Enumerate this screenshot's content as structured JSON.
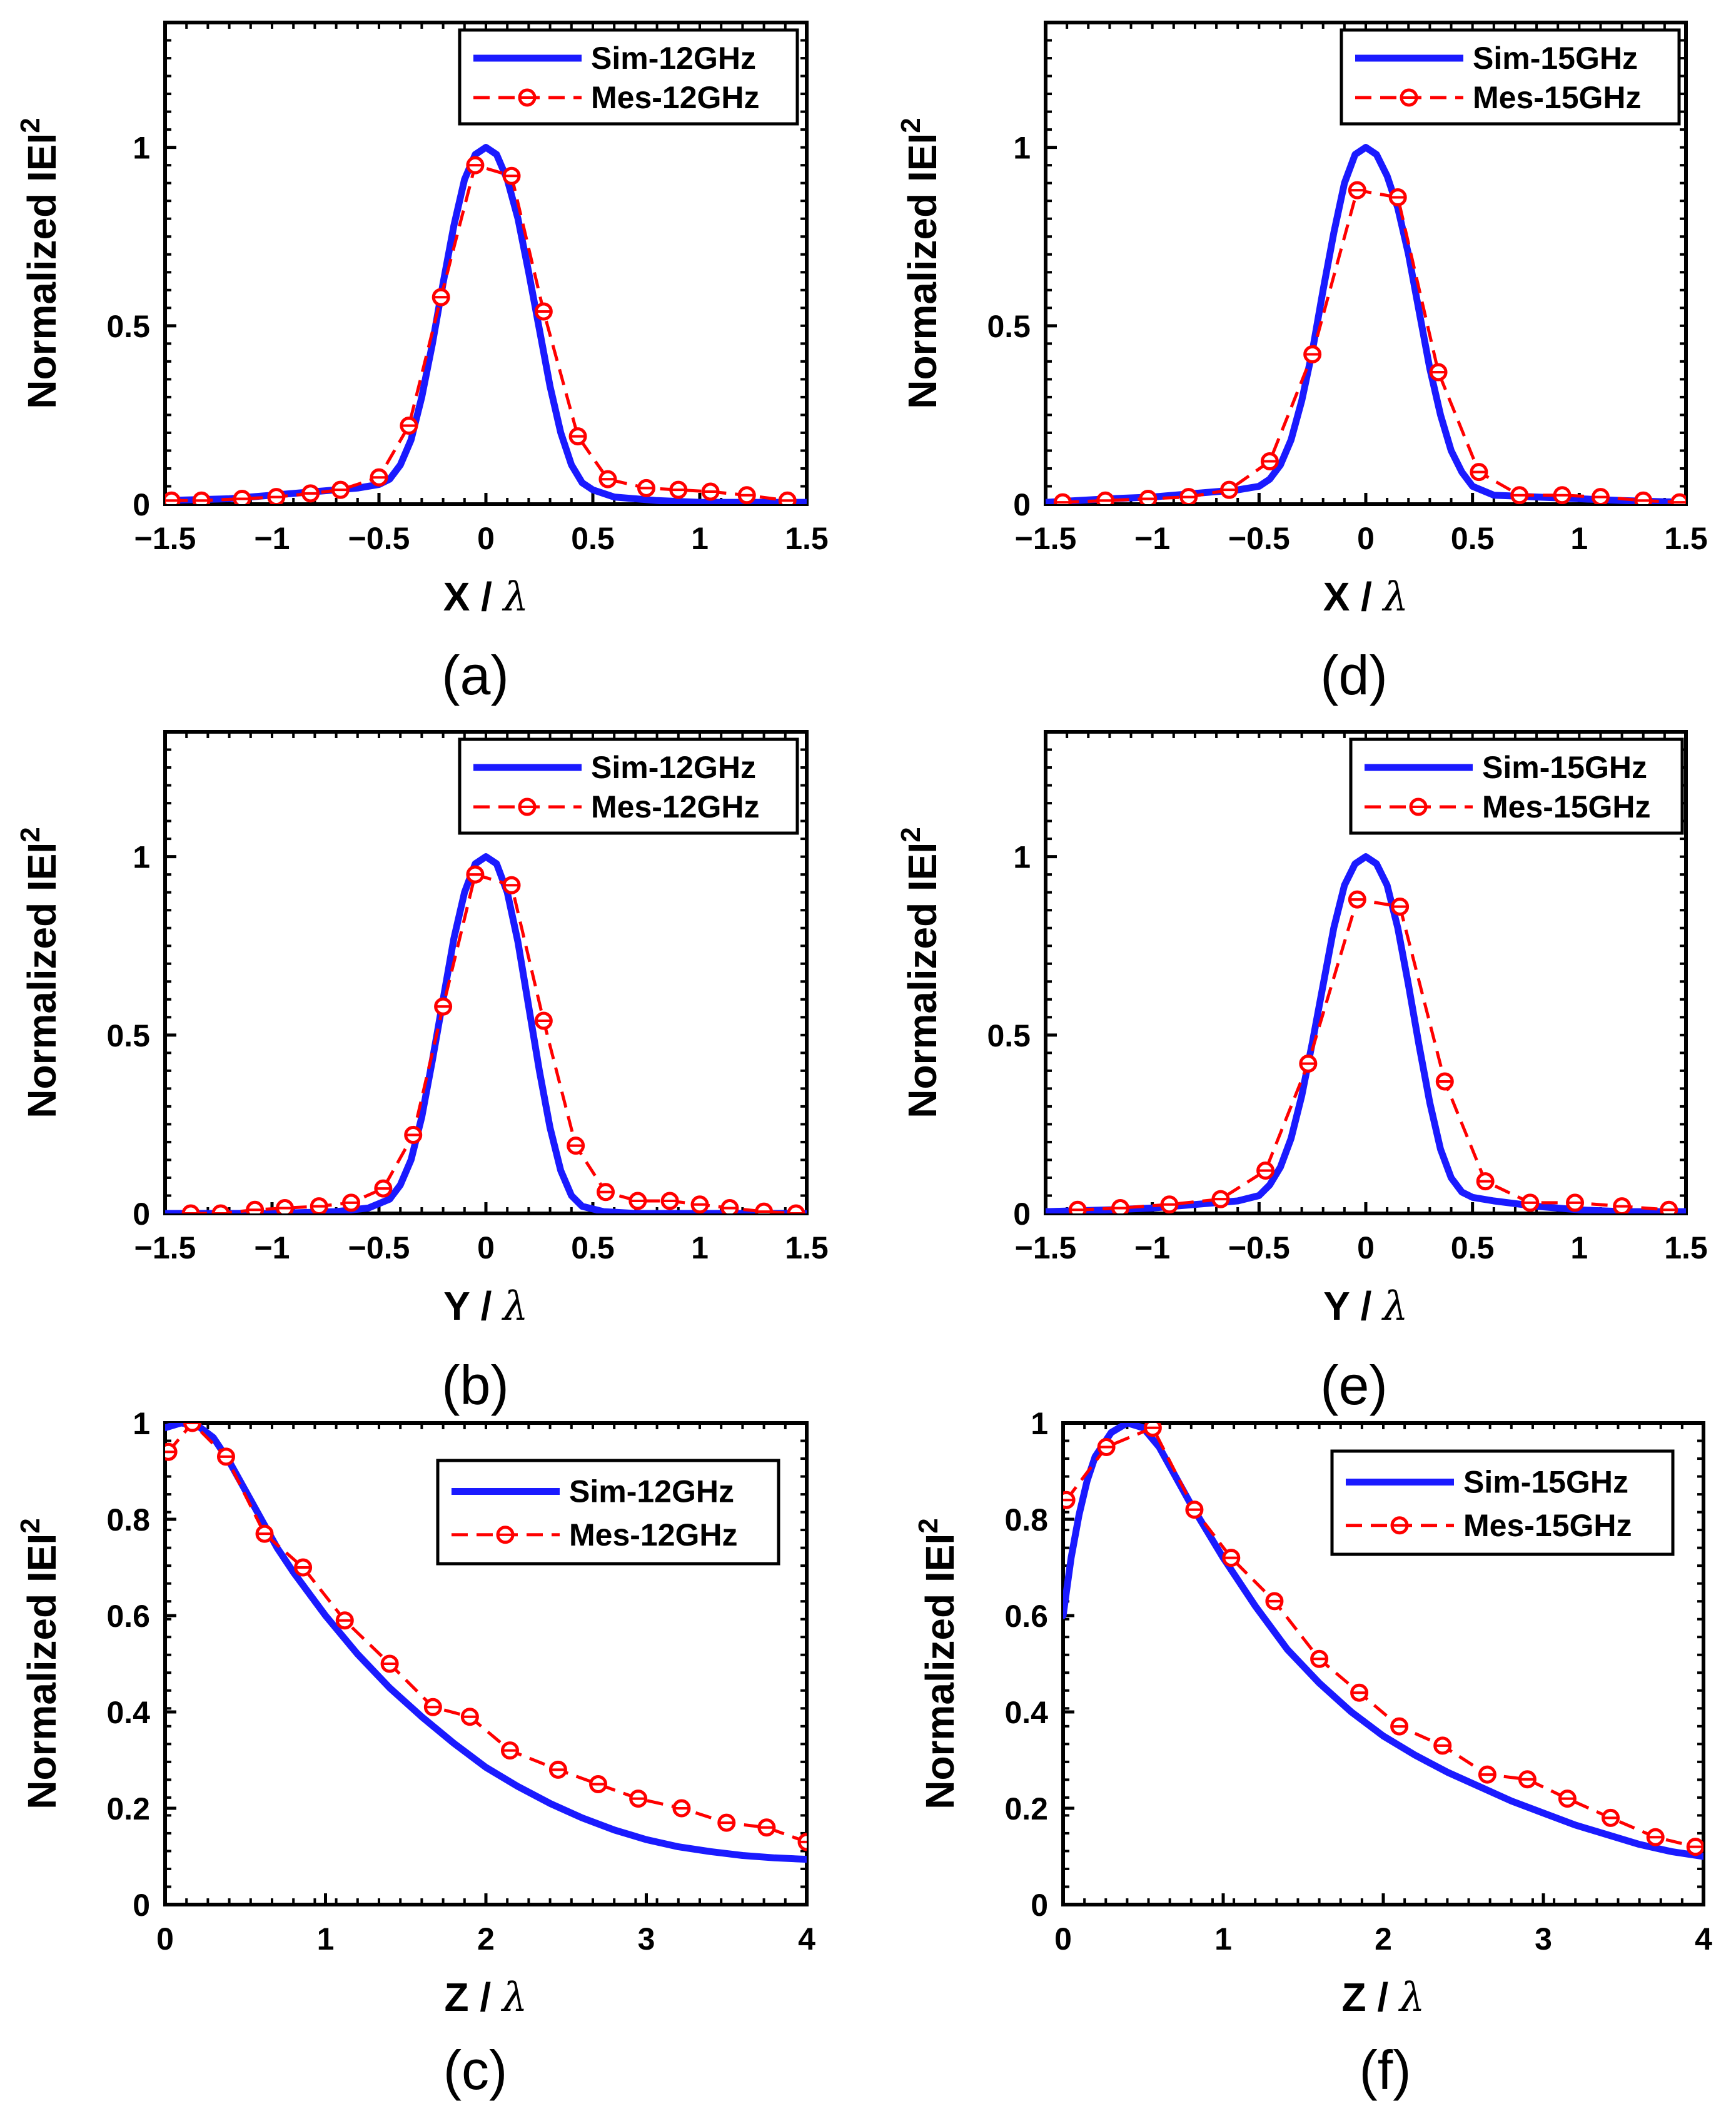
{
  "colors": {
    "sim": "#1a1aff",
    "mes": "#ff0000",
    "axis": "#000000"
  },
  "chart_data": [
    {
      "type": "line",
      "panel_label": "(a)",
      "title": "",
      "xlabel": {
        "var": "X",
        "sep": " / ",
        "unit": "λ"
      },
      "ylabel": "Normalized IEI",
      "ylabel_sup": "2",
      "xlim": [
        -1.5,
        1.5
      ],
      "ylim": [
        0,
        1.35
      ],
      "xticks": [
        -1.5,
        -1,
        -0.5,
        0,
        0.5,
        1,
        1.5
      ],
      "xtick_labels": [
        "−1.5",
        "−1",
        "−0.5",
        "0",
        "0.5",
        "1",
        "1.5"
      ],
      "yticks": [
        0,
        0.5,
        1
      ],
      "ytick_labels": [
        "0",
        "0.5",
        "1"
      ],
      "legend_position": "top-right",
      "series": [
        {
          "name": "Sim-12GHz",
          "style": "solid",
          "x": [
            -1.5,
            -1.2,
            -1.0,
            -0.8,
            -0.6,
            -0.5,
            -0.45,
            -0.4,
            -0.35,
            -0.3,
            -0.25,
            -0.2,
            -0.15,
            -0.1,
            -0.05,
            0,
            0.05,
            0.1,
            0.15,
            0.2,
            0.25,
            0.3,
            0.35,
            0.4,
            0.45,
            0.5,
            0.6,
            0.8,
            1.0,
            1.2,
            1.5
          ],
          "y": [
            0.01,
            0.015,
            0.025,
            0.035,
            0.045,
            0.055,
            0.07,
            0.11,
            0.18,
            0.3,
            0.45,
            0.62,
            0.78,
            0.91,
            0.98,
            1.0,
            0.98,
            0.91,
            0.8,
            0.65,
            0.49,
            0.33,
            0.2,
            0.11,
            0.06,
            0.04,
            0.02,
            0.01,
            0.005,
            0.005,
            0.005
          ]
        },
        {
          "name": "Mes-12GHz",
          "style": "dashed-markers",
          "x": [
            -1.47,
            -1.33,
            -1.14,
            -0.98,
            -0.82,
            -0.68,
            -0.5,
            -0.36,
            -0.21,
            -0.05,
            0.12,
            0.27,
            0.43,
            0.57,
            0.75,
            0.9,
            1.05,
            1.22,
            1.41
          ],
          "y": [
            0.01,
            0.01,
            0.015,
            0.02,
            0.03,
            0.04,
            0.075,
            0.22,
            0.58,
            0.95,
            0.92,
            0.54,
            0.19,
            0.07,
            0.045,
            0.04,
            0.035,
            0.025,
            0.01
          ]
        }
      ]
    },
    {
      "type": "line",
      "panel_label": "(b)",
      "title": "",
      "xlabel": {
        "var": "Y",
        "sep": " / ",
        "unit": "λ"
      },
      "ylabel": "Normalized IEI",
      "ylabel_sup": "2",
      "xlim": [
        -1.5,
        1.5
      ],
      "ylim": [
        0,
        1.35
      ],
      "xticks": [
        -1.5,
        -1,
        -0.5,
        0,
        0.5,
        1,
        1.5
      ],
      "xtick_labels": [
        "−1.5",
        "−1",
        "−0.5",
        "0",
        "0.5",
        "1",
        "1.5"
      ],
      "yticks": [
        0,
        0.5,
        1
      ],
      "ytick_labels": [
        "0",
        "0.5",
        "1"
      ],
      "legend_position": "top-right",
      "series": [
        {
          "name": "Sim-12GHz",
          "style": "solid",
          "x": [
            -1.5,
            -1.0,
            -0.7,
            -0.55,
            -0.45,
            -0.4,
            -0.35,
            -0.3,
            -0.25,
            -0.2,
            -0.15,
            -0.1,
            -0.05,
            0,
            0.05,
            0.1,
            0.15,
            0.2,
            0.25,
            0.3,
            0.35,
            0.4,
            0.45,
            0.55,
            0.7,
            1.0,
            1.5
          ],
          "y": [
            0.0,
            0.0,
            0.005,
            0.015,
            0.04,
            0.08,
            0.15,
            0.27,
            0.43,
            0.6,
            0.77,
            0.9,
            0.98,
            1.0,
            0.98,
            0.9,
            0.76,
            0.58,
            0.4,
            0.24,
            0.12,
            0.05,
            0.02,
            0.005,
            0.0,
            0.0,
            0.0
          ]
        },
        {
          "name": "Mes-12GHz",
          "style": "dashed-markers",
          "x": [
            -1.38,
            -1.24,
            -1.08,
            -0.94,
            -0.78,
            -0.63,
            -0.48,
            -0.34,
            -0.2,
            -0.05,
            0.12,
            0.27,
            0.42,
            0.56,
            0.71,
            0.86,
            1.0,
            1.14,
            1.3,
            1.45
          ],
          "y": [
            0.0,
            0.0,
            0.01,
            0.015,
            0.02,
            0.03,
            0.07,
            0.22,
            0.58,
            0.95,
            0.92,
            0.54,
            0.19,
            0.06,
            0.035,
            0.035,
            0.025,
            0.015,
            0.005,
            0.0
          ]
        }
      ]
    },
    {
      "type": "line",
      "panel_label": "(c)",
      "title": "",
      "xlabel": {
        "var": "Z",
        "sep": " / ",
        "unit": "λ"
      },
      "ylabel": "Normalized IEI",
      "ylabel_sup": "2",
      "xlim": [
        0,
        4
      ],
      "ylim": [
        0,
        1
      ],
      "xticks": [
        0,
        1,
        2,
        3,
        4
      ],
      "xtick_labels": [
        "0",
        "1",
        "2",
        "3",
        "4"
      ],
      "yticks": [
        0,
        0.2,
        0.4,
        0.6,
        0.8,
        1
      ],
      "ytick_labels": [
        "0",
        "0.2",
        "0.4",
        "0.6",
        "0.8",
        "1"
      ],
      "legend_position": "top-right",
      "series": [
        {
          "name": "Sim-12GHz",
          "style": "solid",
          "x": [
            0,
            0.1,
            0.2,
            0.3,
            0.4,
            0.5,
            0.6,
            0.7,
            0.8,
            1.0,
            1.2,
            1.4,
            1.6,
            1.8,
            2.0,
            2.2,
            2.4,
            2.6,
            2.8,
            3.0,
            3.2,
            3.4,
            3.6,
            3.8,
            4.0
          ],
          "y": [
            0.99,
            1.0,
            0.995,
            0.97,
            0.92,
            0.86,
            0.8,
            0.74,
            0.69,
            0.6,
            0.52,
            0.45,
            0.39,
            0.335,
            0.285,
            0.245,
            0.21,
            0.18,
            0.155,
            0.135,
            0.12,
            0.11,
            0.102,
            0.097,
            0.094
          ]
        },
        {
          "name": "Mes-12GHz",
          "style": "dashed-markers",
          "x": [
            0.02,
            0.17,
            0.38,
            0.62,
            0.86,
            1.12,
            1.4,
            1.67,
            1.9,
            2.15,
            2.45,
            2.7,
            2.95,
            3.22,
            3.5,
            3.75,
            4.0
          ],
          "y": [
            0.94,
            1.0,
            0.93,
            0.77,
            0.7,
            0.59,
            0.5,
            0.41,
            0.39,
            0.32,
            0.28,
            0.25,
            0.22,
            0.2,
            0.17,
            0.16,
            0.13
          ]
        }
      ]
    },
    {
      "type": "line",
      "panel_label": "(d)",
      "title": "",
      "xlabel": {
        "var": "X",
        "sep": " / ",
        "unit": "λ"
      },
      "ylabel": "Normalized IEI",
      "ylabel_sup": "2",
      "xlim": [
        -1.5,
        1.5
      ],
      "ylim": [
        0,
        1.35
      ],
      "xticks": [
        -1.5,
        -1,
        -0.5,
        0,
        0.5,
        1,
        1.5
      ],
      "xtick_labels": [
        "−1.5",
        "−1",
        "−0.5",
        "0",
        "0.5",
        "1",
        "1.5"
      ],
      "yticks": [
        0,
        0.5,
        1
      ],
      "ytick_labels": [
        "0",
        "0.5",
        "1"
      ],
      "legend_position": "top-right",
      "series": [
        {
          "name": "Sim-15GHz",
          "style": "solid",
          "x": [
            -1.5,
            -1.2,
            -1.0,
            -0.8,
            -0.6,
            -0.5,
            -0.45,
            -0.4,
            -0.35,
            -0.3,
            -0.25,
            -0.2,
            -0.15,
            -0.1,
            -0.05,
            0,
            0.05,
            0.1,
            0.15,
            0.2,
            0.25,
            0.3,
            0.35,
            0.4,
            0.45,
            0.5,
            0.6,
            0.8,
            1.0,
            1.2,
            1.5
          ],
          "y": [
            0.005,
            0.015,
            0.02,
            0.03,
            0.04,
            0.05,
            0.07,
            0.11,
            0.18,
            0.29,
            0.43,
            0.6,
            0.76,
            0.9,
            0.98,
            1.0,
            0.98,
            0.92,
            0.83,
            0.7,
            0.54,
            0.38,
            0.25,
            0.15,
            0.09,
            0.05,
            0.025,
            0.02,
            0.015,
            0.01,
            0.005
          ]
        },
        {
          "name": "Mes-15GHz",
          "style": "dashed-markers",
          "x": [
            -1.42,
            -1.22,
            -1.02,
            -0.83,
            -0.64,
            -0.45,
            -0.25,
            -0.04,
            0.15,
            0.34,
            0.53,
            0.72,
            0.92,
            1.1,
            1.3,
            1.47
          ],
          "y": [
            0.005,
            0.01,
            0.015,
            0.02,
            0.04,
            0.12,
            0.42,
            0.88,
            0.86,
            0.37,
            0.09,
            0.025,
            0.025,
            0.02,
            0.01,
            0.005
          ]
        }
      ]
    },
    {
      "type": "line",
      "panel_label": "(e)",
      "title": "",
      "xlabel": {
        "var": "Y",
        "sep": " / ",
        "unit": "λ"
      },
      "ylabel": "Normalized IEI",
      "ylabel_sup": "2",
      "xlim": [
        -1.5,
        1.5
      ],
      "ylim": [
        0,
        1.35
      ],
      "xticks": [
        -1.5,
        -1,
        -0.5,
        0,
        0.5,
        1,
        1.5
      ],
      "xtick_labels": [
        "−1.5",
        "−1",
        "−0.5",
        "0",
        "0.5",
        "1",
        "1.5"
      ],
      "yticks": [
        0,
        0.5,
        1
      ],
      "ytick_labels": [
        "0",
        "0.5",
        "1"
      ],
      "legend_position": "top-right",
      "series": [
        {
          "name": "Sim-15GHz",
          "style": "solid",
          "x": [
            -1.5,
            -1.2,
            -1.0,
            -0.8,
            -0.6,
            -0.5,
            -0.45,
            -0.4,
            -0.35,
            -0.3,
            -0.25,
            -0.2,
            -0.15,
            -0.1,
            -0.05,
            0,
            0.05,
            0.1,
            0.15,
            0.2,
            0.25,
            0.3,
            0.35,
            0.4,
            0.45,
            0.5,
            0.6,
            0.8,
            1.0,
            1.2,
            1.5
          ],
          "y": [
            0.005,
            0.01,
            0.015,
            0.025,
            0.035,
            0.05,
            0.08,
            0.13,
            0.21,
            0.33,
            0.48,
            0.64,
            0.8,
            0.92,
            0.98,
            1.0,
            0.98,
            0.92,
            0.8,
            0.64,
            0.47,
            0.31,
            0.18,
            0.1,
            0.06,
            0.045,
            0.035,
            0.02,
            0.01,
            0.005,
            0.005
          ]
        },
        {
          "name": "Mes-15GHz",
          "style": "dashed-markers",
          "x": [
            -1.35,
            -1.15,
            -0.92,
            -0.68,
            -0.47,
            -0.27,
            -0.04,
            0.16,
            0.37,
            0.56,
            0.77,
            0.98,
            1.2,
            1.42
          ],
          "y": [
            0.01,
            0.015,
            0.025,
            0.04,
            0.12,
            0.42,
            0.88,
            0.86,
            0.37,
            0.09,
            0.03,
            0.03,
            0.02,
            0.01
          ]
        }
      ]
    },
    {
      "type": "line",
      "panel_label": "(f)",
      "title": "",
      "xlabel": {
        "var": "Z",
        "sep": " / ",
        "unit": "λ"
      },
      "ylabel": "Normalized IEI",
      "ylabel_sup": "2",
      "xlim": [
        0,
        4
      ],
      "ylim": [
        0,
        1
      ],
      "xticks": [
        0,
        1,
        2,
        3,
        4
      ],
      "xtick_labels": [
        "0",
        "1",
        "2",
        "3",
        "4"
      ],
      "yticks": [
        0,
        0.2,
        0.4,
        0.6,
        0.8,
        1
      ],
      "ytick_labels": [
        "0",
        "0.2",
        "0.4",
        "0.6",
        "0.8",
        "1"
      ],
      "legend_position": "top-right",
      "series": [
        {
          "name": "Sim-15GHz",
          "style": "solid",
          "x": [
            0,
            0.05,
            0.1,
            0.15,
            0.2,
            0.3,
            0.4,
            0.5,
            0.6,
            0.7,
            0.8,
            1.0,
            1.2,
            1.4,
            1.6,
            1.8,
            2.0,
            2.2,
            2.4,
            2.6,
            2.8,
            3.0,
            3.2,
            3.4,
            3.6,
            3.8,
            4.0
          ],
          "y": [
            0.6,
            0.72,
            0.81,
            0.88,
            0.93,
            0.98,
            1.0,
            0.99,
            0.95,
            0.89,
            0.83,
            0.72,
            0.62,
            0.53,
            0.46,
            0.4,
            0.35,
            0.31,
            0.275,
            0.245,
            0.215,
            0.19,
            0.165,
            0.145,
            0.125,
            0.11,
            0.1
          ]
        },
        {
          "name": "Mes-15GHz",
          "style": "dashed-markers",
          "x": [
            0.02,
            0.27,
            0.56,
            0.82,
            1.05,
            1.32,
            1.6,
            1.85,
            2.1,
            2.37,
            2.65,
            2.9,
            3.15,
            3.42,
            3.7,
            3.95
          ],
          "y": [
            0.84,
            0.95,
            0.99,
            0.82,
            0.72,
            0.63,
            0.51,
            0.44,
            0.37,
            0.33,
            0.27,
            0.26,
            0.22,
            0.18,
            0.14,
            0.12
          ]
        }
      ]
    }
  ]
}
